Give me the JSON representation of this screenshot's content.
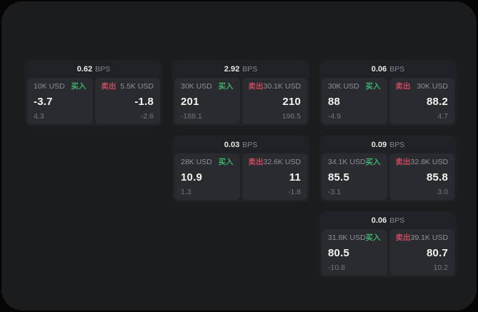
{
  "theme": {
    "outer_background": "#050505",
    "surface_background": "#1b1c1e",
    "card_background": "#202124",
    "panel_background": "#2a2b2e",
    "buy_color": "#3fae6e",
    "sell_color": "#c64a5e",
    "primary_text": "#f3f4f5",
    "muted_text": "#8d9094",
    "faint_text": "#747779"
  },
  "labels": {
    "bps": "BPS",
    "buy": "买入",
    "sell": "卖出"
  },
  "cards": [
    {
      "row": 1,
      "col": 1,
      "bps": "0.62",
      "buy": {
        "amount": "10K USD",
        "price": "-3.7",
        "delta": "4.3"
      },
      "sell": {
        "amount": "5.5K USD",
        "price": "-1.8",
        "delta": "-2.6"
      }
    },
    {
      "row": 1,
      "col": 2,
      "bps": "2.92",
      "buy": {
        "amount": "30K USD",
        "price": "201",
        "delta": "-188.1"
      },
      "sell": {
        "amount": "30.1K USD",
        "price": "210",
        "delta": "196.5"
      }
    },
    {
      "row": 1,
      "col": 3,
      "bps": "0.06",
      "buy": {
        "amount": "30K USD",
        "price": "88",
        "delta": "-4.9"
      },
      "sell": {
        "amount": "30K USD",
        "price": "88.2",
        "delta": "4.7"
      }
    },
    {
      "row": 2,
      "col": 2,
      "bps": "0.03",
      "buy": {
        "amount": "28K USD",
        "price": "10.9",
        "delta": "1.3"
      },
      "sell": {
        "amount": "32.6K USD",
        "price": "11",
        "delta": "-1.8"
      }
    },
    {
      "row": 2,
      "col": 3,
      "bps": "0.09",
      "buy": {
        "amount": "34.1K USD",
        "price": "85.5",
        "delta": "-3.1"
      },
      "sell": {
        "amount": "32.8K USD",
        "price": "85.8",
        "delta": "3.0"
      }
    },
    {
      "row": 3,
      "col": 3,
      "bps": "0.06",
      "buy": {
        "amount": "31.8K USD",
        "price": "80.5",
        "delta": "-10.8"
      },
      "sell": {
        "amount": "39.1K USD",
        "price": "80.7",
        "delta": "10.2"
      }
    }
  ]
}
